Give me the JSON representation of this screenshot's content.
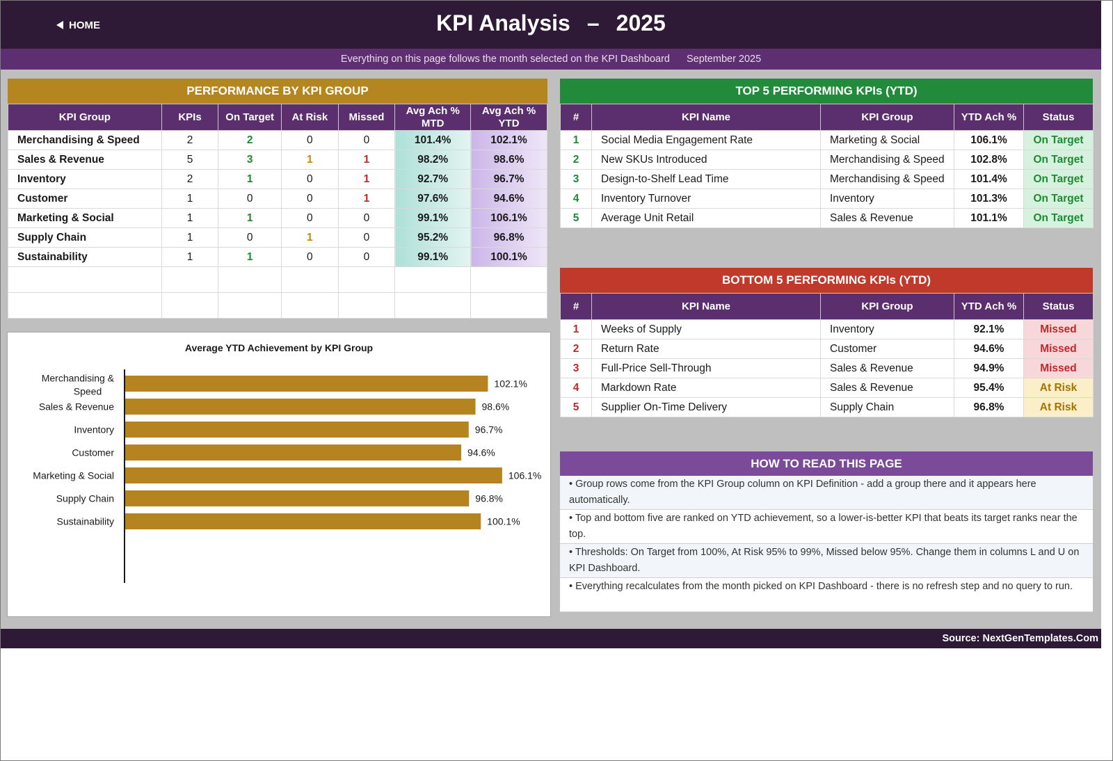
{
  "header": {
    "home_label": "HOME",
    "title": "KPI Analysis",
    "dash": "–",
    "year": "2025",
    "subtitle": "Everything on this page follows the month selected on the KPI Dashboard",
    "month": "September 2025"
  },
  "colors": {
    "header_bg": "#2e1a36",
    "subheader_bg": "#5e2f70",
    "group_panel": "#b5861f",
    "top_panel": "#228b3b",
    "bottom_panel": "#c0392b",
    "how_panel": "#7b4a99",
    "bar": "#b5831f"
  },
  "group_table": {
    "title": "PERFORMANCE BY KPI GROUP",
    "columns": [
      "KPI Group",
      "KPIs",
      "On Target",
      "At Risk",
      "Missed",
      "Avg Ach % MTD",
      "Avg Ach % YTD"
    ],
    "rows": [
      {
        "group": "Merchandising & Speed",
        "kpis": "2",
        "on_target": "2",
        "at_risk": "0",
        "missed": "0",
        "mtd": "101.4%",
        "ytd": "102.1%"
      },
      {
        "group": "Sales & Revenue",
        "kpis": "5",
        "on_target": "3",
        "at_risk": "1",
        "missed": "1",
        "mtd": "98.2%",
        "ytd": "98.6%"
      },
      {
        "group": "Inventory",
        "kpis": "2",
        "on_target": "1",
        "at_risk": "0",
        "missed": "1",
        "mtd": "92.7%",
        "ytd": "96.7%"
      },
      {
        "group": "Customer",
        "kpis": "1",
        "on_target": "0",
        "at_risk": "0",
        "missed": "1",
        "mtd": "97.6%",
        "ytd": "94.6%"
      },
      {
        "group": "Marketing & Social",
        "kpis": "1",
        "on_target": "1",
        "at_risk": "0",
        "missed": "0",
        "mtd": "99.1%",
        "ytd": "106.1%"
      },
      {
        "group": "Supply Chain",
        "kpis": "1",
        "on_target": "0",
        "at_risk": "1",
        "missed": "0",
        "mtd": "95.2%",
        "ytd": "96.8%"
      },
      {
        "group": "Sustainability",
        "kpis": "1",
        "on_target": "1",
        "at_risk": "0",
        "missed": "0",
        "mtd": "99.1%",
        "ytd": "100.1%"
      }
    ]
  },
  "top5": {
    "title": "TOP 5 PERFORMING KPIs  (YTD)",
    "columns": [
      "#",
      "KPI Name",
      "KPI Group",
      "YTD Ach %",
      "Status"
    ],
    "rows": [
      {
        "rank": "1",
        "name": "Social Media Engagement Rate",
        "group": "Marketing & Social",
        "ytd": "106.1%",
        "status": "On Target"
      },
      {
        "rank": "2",
        "name": "New SKUs Introduced",
        "group": "Merchandising & Speed",
        "ytd": "102.8%",
        "status": "On Target"
      },
      {
        "rank": "3",
        "name": "Design-to-Shelf Lead Time",
        "group": "Merchandising & Speed",
        "ytd": "101.4%",
        "status": "On Target"
      },
      {
        "rank": "4",
        "name": "Inventory Turnover",
        "group": "Inventory",
        "ytd": "101.3%",
        "status": "On Target"
      },
      {
        "rank": "5",
        "name": "Average Unit Retail",
        "group": "Sales & Revenue",
        "ytd": "101.1%",
        "status": "On Target"
      }
    ]
  },
  "bottom5": {
    "title": "BOTTOM 5 PERFORMING KPIs  (YTD)",
    "columns": [
      "#",
      "KPI Name",
      "KPI Group",
      "YTD Ach %",
      "Status"
    ],
    "rows": [
      {
        "rank": "1",
        "name": "Weeks of Supply",
        "group": "Inventory",
        "ytd": "92.1%",
        "status": "Missed"
      },
      {
        "rank": "2",
        "name": "Return Rate",
        "group": "Customer",
        "ytd": "94.6%",
        "status": "Missed"
      },
      {
        "rank": "3",
        "name": "Full-Price Sell-Through",
        "group": "Sales & Revenue",
        "ytd": "94.9%",
        "status": "Missed"
      },
      {
        "rank": "4",
        "name": "Markdown Rate",
        "group": "Sales & Revenue",
        "ytd": "95.4%",
        "status": "At Risk"
      },
      {
        "rank": "5",
        "name": "Supplier On-Time Delivery",
        "group": "Supply Chain",
        "ytd": "96.8%",
        "status": "At Risk"
      }
    ]
  },
  "how": {
    "title": "HOW TO READ THIS PAGE",
    "items": [
      "•  Group rows come from the KPI Group column on KPI Definition - add a group there and it appears here automatically.",
      "•  Top and bottom five are ranked on YTD achievement, so a lower-is-better KPI that beats its target ranks near the top.",
      "•  Thresholds: On Target from 100%, At Risk 95% to 99%, Missed below 95%. Change them in columns L and U on KPI Dashboard.",
      "•  Everything recalculates from the month picked on KPI Dashboard - there is no refresh step and no query to run."
    ]
  },
  "footer": "Source: NextGenTemplates.Com",
  "chart_data": {
    "type": "bar",
    "orientation": "horizontal",
    "title": "Average YTD Achievement by KPI Group",
    "categories": [
      "Merchandising & Speed",
      "Sales & Revenue",
      "Inventory",
      "Customer",
      "Marketing & Social",
      "Supply Chain",
      "Sustainability"
    ],
    "values": [
      102.1,
      98.6,
      96.7,
      94.6,
      106.1,
      96.8,
      100.1
    ],
    "value_labels": [
      "102.1%",
      "98.6%",
      "96.7%",
      "94.6%",
      "106.1%",
      "96.8%",
      "100.1%"
    ],
    "xlim": [
      0,
      120
    ],
    "grid": false,
    "legend": false
  }
}
